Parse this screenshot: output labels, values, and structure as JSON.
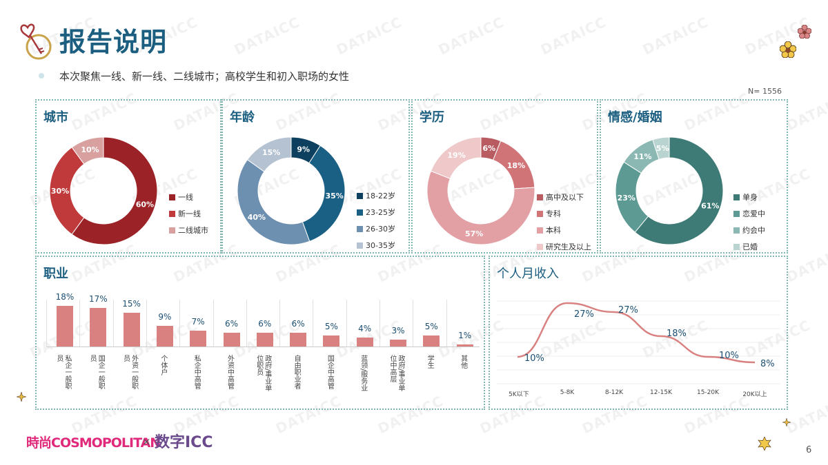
{
  "header": {
    "title": "报告说明",
    "subtitle": "本次聚焦一线、新一线、二线城市；高校学生和初入职场的女性",
    "sample_size": "N=  1556"
  },
  "panels": {
    "city": {
      "title": "城市"
    },
    "age": {
      "title": "年龄"
    },
    "education": {
      "title": "学历"
    },
    "marital": {
      "title": "情感/婚姻"
    },
    "occupation": {
      "title": "职业"
    },
    "income": {
      "title": "个人月收入"
    }
  },
  "footer": {
    "brand1": "時尚COSMOPOLITAN",
    "times": "×",
    "brand2": "数字ICC",
    "page_number": "6"
  },
  "watermark": "DATAICC",
  "colors": {
    "title_blue": "#1b5e80",
    "panel_border": "#7fb5b0",
    "bar": "#d98080",
    "line": "#d98080"
  },
  "chart_data": [
    {
      "type": "pie",
      "title": "城市",
      "categories": [
        "一线",
        "新一线",
        "二线城市"
      ],
      "values": [
        60,
        30,
        10
      ],
      "labels": [
        "60%",
        "30%",
        "10%"
      ],
      "colors": [
        "#9b2226",
        "#c0393b",
        "#d9a0a0"
      ],
      "legend_position": "right"
    },
    {
      "type": "pie",
      "title": "年龄",
      "categories": [
        "18-22岁",
        "23-25岁",
        "26-30岁",
        "30-35岁"
      ],
      "values": [
        9,
        35,
        40,
        15
      ],
      "labels": [
        "9%",
        "35%",
        "40%",
        "15%"
      ],
      "colors": [
        "#0d3f5e",
        "#1a5f84",
        "#6d8fb0",
        "#b4c2d2"
      ],
      "legend_position": "right"
    },
    {
      "type": "pie",
      "title": "学历",
      "categories": [
        "高中及以下",
        "专科",
        "本科",
        "研究生及以上"
      ],
      "values": [
        6,
        18,
        57,
        19
      ],
      "labels": [
        "6%",
        "18%",
        "57%",
        "19%"
      ],
      "colors": [
        "#b85c62",
        "#d07478",
        "#e3a0a4",
        "#efc8ca"
      ],
      "legend_position": "right"
    },
    {
      "type": "pie",
      "title": "情感/婚姻",
      "categories": [
        "单身",
        "恋爱中",
        "约会中",
        "已婚"
      ],
      "values": [
        61,
        23,
        11,
        5
      ],
      "labels": [
        "61%",
        "23%",
        "11%",
        "5%"
      ],
      "colors": [
        "#3f7b76",
        "#5c9a93",
        "#8bb8b2",
        "#b9d4d0"
      ],
      "legend_position": "right"
    },
    {
      "type": "bar",
      "title": "职业",
      "categories": [
        "私企一般职员",
        "国企一般职员",
        "外资一般职员",
        "个体户",
        "私企中高管",
        "外资中高管",
        "政府/事业单位职员",
        "自由职业者",
        "国企中高管",
        "蓝领/服务业",
        "政府/事业单位中高层",
        "学生",
        "其他"
      ],
      "category_lines": [
        [
          "私企一般职",
          "员"
        ],
        [
          "国企一般职",
          "员"
        ],
        [
          "外资一般职",
          "员"
        ],
        [
          "个体户"
        ],
        [
          "私企中高管"
        ],
        [
          "外资中高管"
        ],
        [
          "政府/事业单",
          "位职员"
        ],
        [
          "自由职业者"
        ],
        [
          "国企中高管"
        ],
        [
          "蓝领/服务业"
        ],
        [
          "政府/事业单",
          "位中高层"
        ],
        [
          "学生"
        ],
        [
          "其他"
        ]
      ],
      "values": [
        18,
        17,
        15,
        9,
        7,
        6,
        6,
        6,
        5,
        4,
        3,
        5,
        1
      ],
      "labels": [
        "18%",
        "17%",
        "15%",
        "9%",
        "7%",
        "6%",
        "6%",
        "6%",
        "5%",
        "4%",
        "3%",
        "5%",
        "1%"
      ],
      "ylim": [
        0,
        20
      ]
    },
    {
      "type": "line",
      "title": "个人月收入",
      "categories": [
        "5K以下",
        "5-8K",
        "8-12K",
        "12-15K",
        "15-20K",
        "20K以上"
      ],
      "values": [
        10,
        27,
        27,
        18,
        10,
        8
      ],
      "labels": [
        "10%",
        "27%",
        "27%",
        "18%",
        "10%",
        "8%"
      ],
      "smooth": true,
      "grid": true,
      "ylim": [
        0,
        30
      ]
    }
  ]
}
